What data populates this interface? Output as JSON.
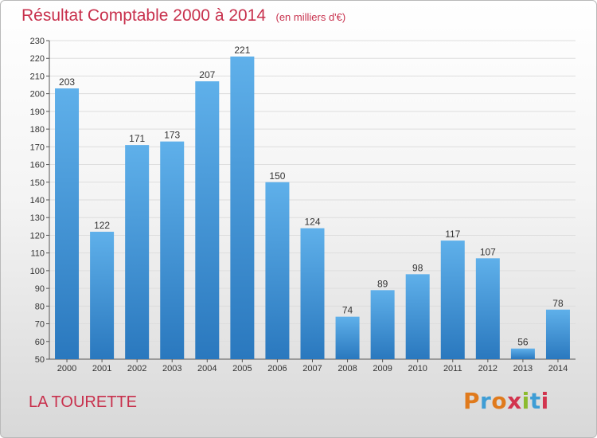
{
  "header": {
    "title": "Résultat Comptable 2000 à 2014",
    "unit": "(en milliers d'€)"
  },
  "footer": {
    "place": "LA TOURETTE",
    "brand": "Proxiti"
  },
  "colors": {
    "title": "#c8314d",
    "bar_light": "#5fb0ea",
    "bar_dark": "#2a78be",
    "grid": "#dddddd"
  },
  "chart_data": {
    "type": "bar",
    "title": "Résultat Comptable 2000 à 2014",
    "subtitle": "(en milliers d'€)",
    "xlabel": "",
    "ylabel": "",
    "categories": [
      "2000",
      "2001",
      "2002",
      "2003",
      "2004",
      "2005",
      "2006",
      "2007",
      "2008",
      "2009",
      "2010",
      "2011",
      "2012",
      "2013",
      "2014"
    ],
    "values": [
      203,
      122,
      171,
      173,
      207,
      221,
      150,
      124,
      74,
      89,
      98,
      117,
      107,
      56,
      78
    ],
    "ylim": [
      50,
      230
    ],
    "yticks": [
      50,
      60,
      70,
      80,
      90,
      100,
      110,
      120,
      130,
      140,
      150,
      160,
      170,
      180,
      190,
      200,
      210,
      220,
      230
    ],
    "grid": true,
    "legend": "none"
  }
}
